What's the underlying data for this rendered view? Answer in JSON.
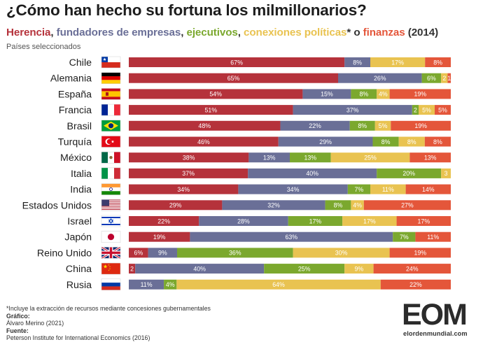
{
  "title": "¿Cómo han hecho su fortuna los milmillonarios?",
  "subtitle": {
    "herencia": "Herencia",
    "sep1": ", ",
    "fundadores": "fundadores de empresas",
    "sep2": ", ",
    "ejecutivos": "ejecutivos",
    "sep3": ", ",
    "conexiones": "conexiones políticas",
    "asterisk": "*",
    "o": " o ",
    "finanzas": "finanzas",
    "year": " (2014)"
  },
  "note_top": "Países seleccionados",
  "chart_data": {
    "type": "bar",
    "orientation": "horizontal",
    "stacked": true,
    "normalized_percent": true,
    "categories": [
      "Chile",
      "Alemania",
      "España",
      "Francia",
      "Brasil",
      "Turquía",
      "México",
      "Italia",
      "India",
      "Estados Unidos",
      "Israel",
      "Japón",
      "Reino Unido",
      "China",
      "Rusia"
    ],
    "series": [
      {
        "name": "Herencia",
        "color": "#b5323b",
        "values": [
          67,
          65,
          54,
          51,
          48,
          46,
          38,
          37,
          34,
          29,
          22,
          19,
          6,
          2,
          0
        ]
      },
      {
        "name": "Fundadores de empresas",
        "color": "#6a6f97",
        "values": [
          8,
          26,
          15,
          37,
          22,
          29,
          13,
          40,
          34,
          32,
          28,
          63,
          9,
          40,
          11
        ]
      },
      {
        "name": "Ejecutivos",
        "color": "#7ba82e",
        "values": [
          0,
          6,
          8,
          2,
          8,
          8,
          13,
          20,
          7,
          8,
          17,
          7,
          36,
          25,
          4
        ]
      },
      {
        "name": "Conexiones políticas",
        "color": "#e9c351",
        "values": [
          17,
          2,
          4,
          5,
          5,
          8,
          25,
          3,
          11,
          4,
          17,
          0,
          30,
          9,
          64
        ]
      },
      {
        "name": "Finanzas",
        "color": "#e4563a",
        "values": [
          8,
          1,
          19,
          5,
          19,
          8,
          13,
          0,
          14,
          27,
          17,
          11,
          19,
          24,
          22
        ]
      }
    ],
    "flags": [
      "chile",
      "germany",
      "spain",
      "france",
      "brazil",
      "turkey",
      "mexico",
      "italy",
      "india",
      "usa",
      "israel",
      "japan",
      "uk",
      "china",
      "russia"
    ]
  },
  "footer": {
    "note": "*Incluye la extracción de recursos mediante concesiones gubernamentales",
    "grafico_label": "Gráfico:",
    "grafico_value": "Álvaro Merino (2021)",
    "fuente_label": "Fuente:",
    "fuente_value": "Peterson Institute for International Economics (2016)"
  },
  "logo": {
    "text": "EOM",
    "site": "elordenmundial.com"
  }
}
